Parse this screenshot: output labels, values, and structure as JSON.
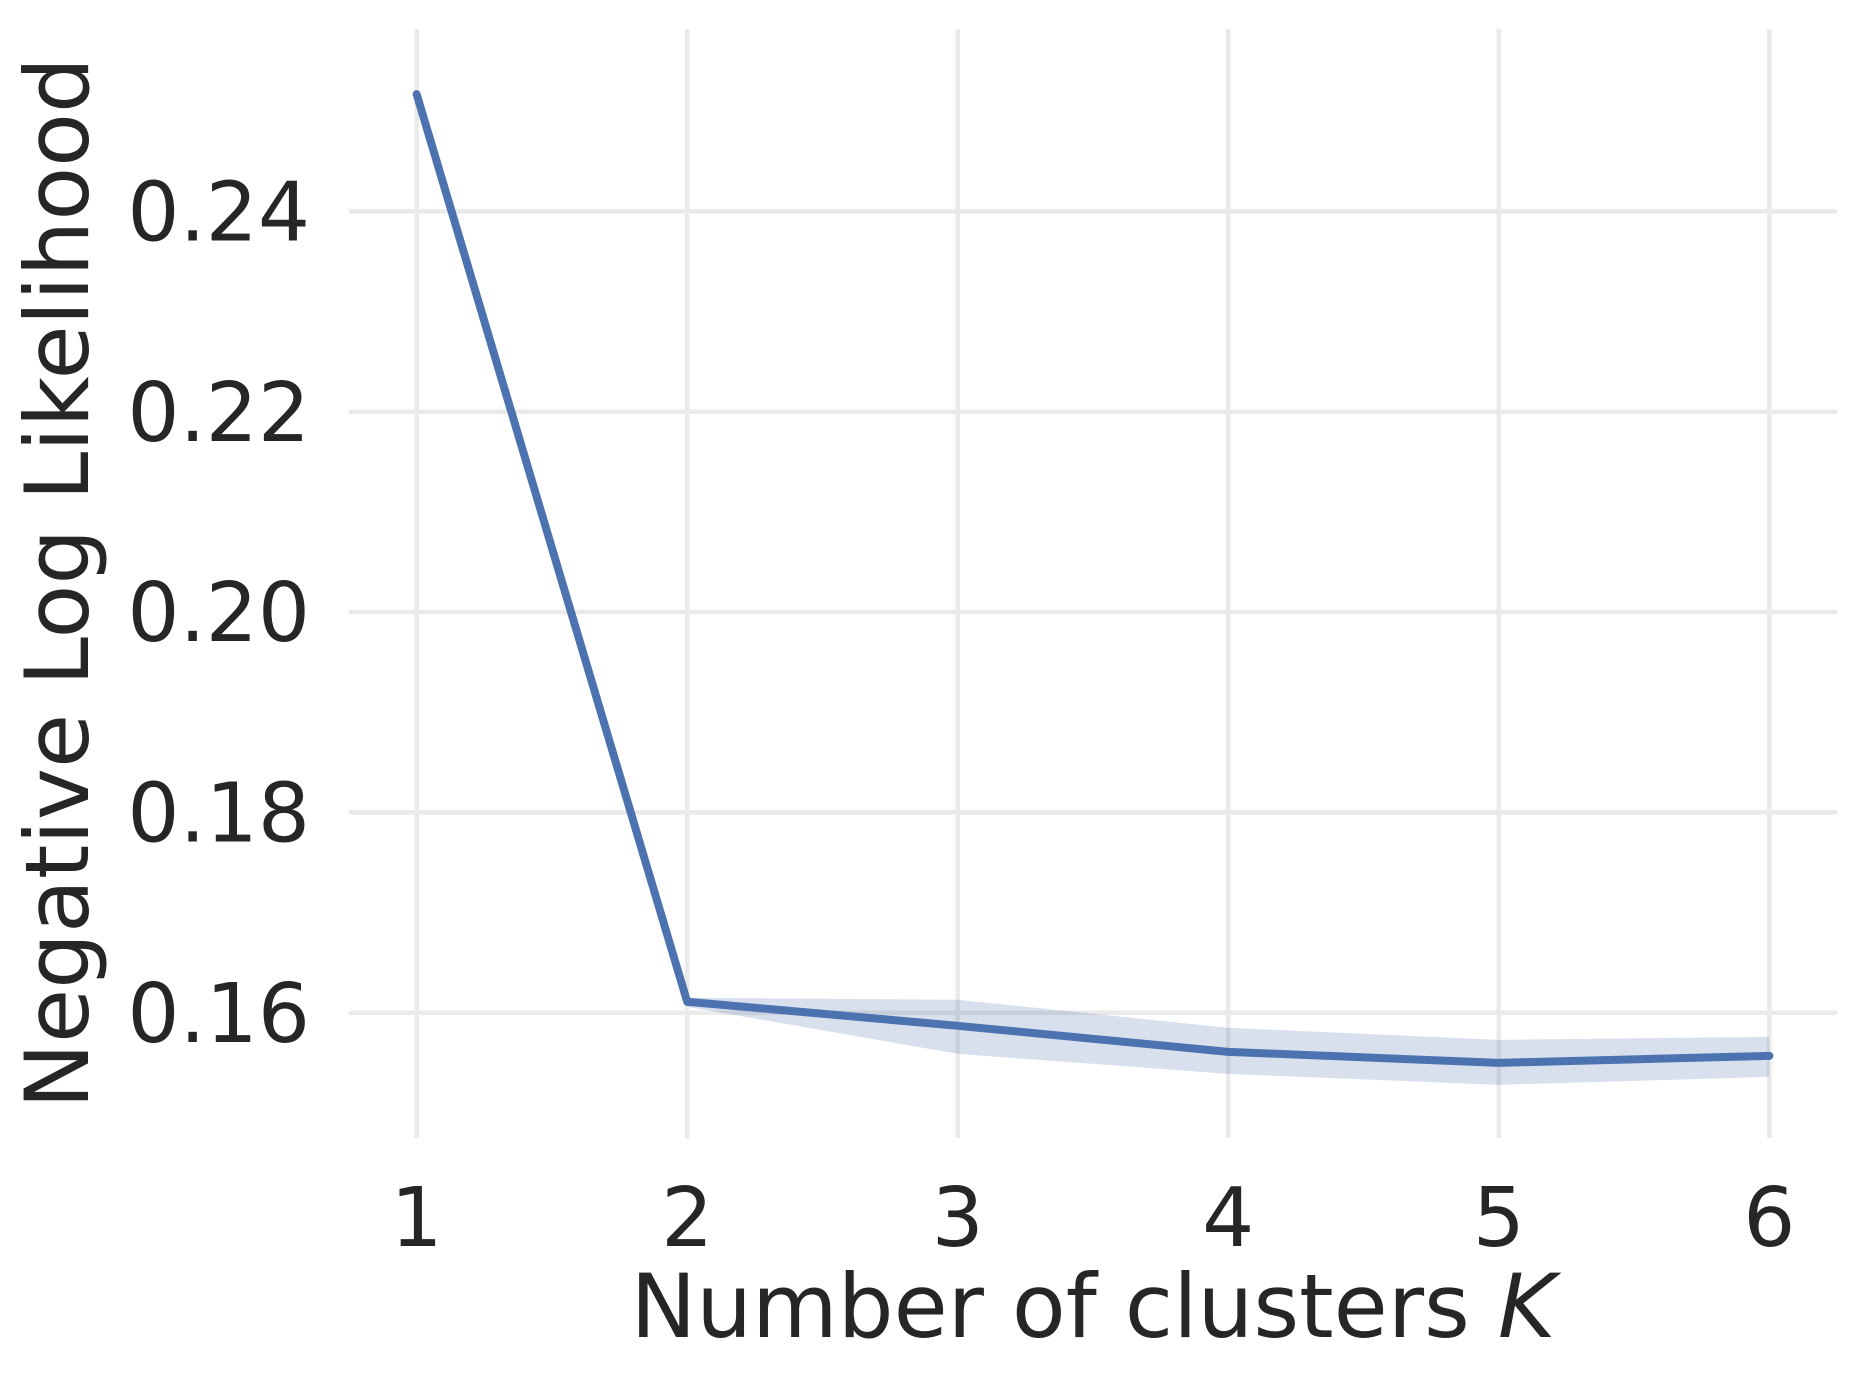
{
  "chart_data": {
    "type": "line",
    "title": "",
    "xlabel": "Number of clusters K",
    "xlabel_text": "Number of clusters ",
    "xlabel_italic": "K",
    "ylabel": "Negative Log Likelihood",
    "x": [
      1,
      2,
      3,
      4,
      5,
      6
    ],
    "series": [
      {
        "name": "negative-log-likelihood-mean",
        "values": [
          0.2517,
          0.1611,
          0.1587,
          0.1561,
          0.155,
          0.1557
        ],
        "band_upper": [
          0.2519,
          0.1615,
          0.1613,
          0.1585,
          0.1573,
          0.1576
        ],
        "band_lower": [
          0.2515,
          0.1606,
          0.1559,
          0.1539,
          0.1528,
          0.1536
        ]
      }
    ],
    "x_tick_labels": [
      "1",
      "2",
      "3",
      "4",
      "5",
      "6"
    ],
    "y_ticks": [
      0.16,
      0.18,
      0.2,
      0.22,
      0.24
    ],
    "y_tick_labels": [
      "0.16",
      "0.18",
      "0.20",
      "0.22",
      "0.24"
    ],
    "xlim": [
      0.75,
      6.25
    ],
    "ylim": [
      0.1475,
      0.2582
    ],
    "grid": true,
    "legend": "none",
    "line_color": "#4C72B0",
    "band_color": "rgba(76,114,176,0.22)",
    "grid_color": "#EAEAEA",
    "text_color": "#262626",
    "background": "#FFFFFF"
  }
}
